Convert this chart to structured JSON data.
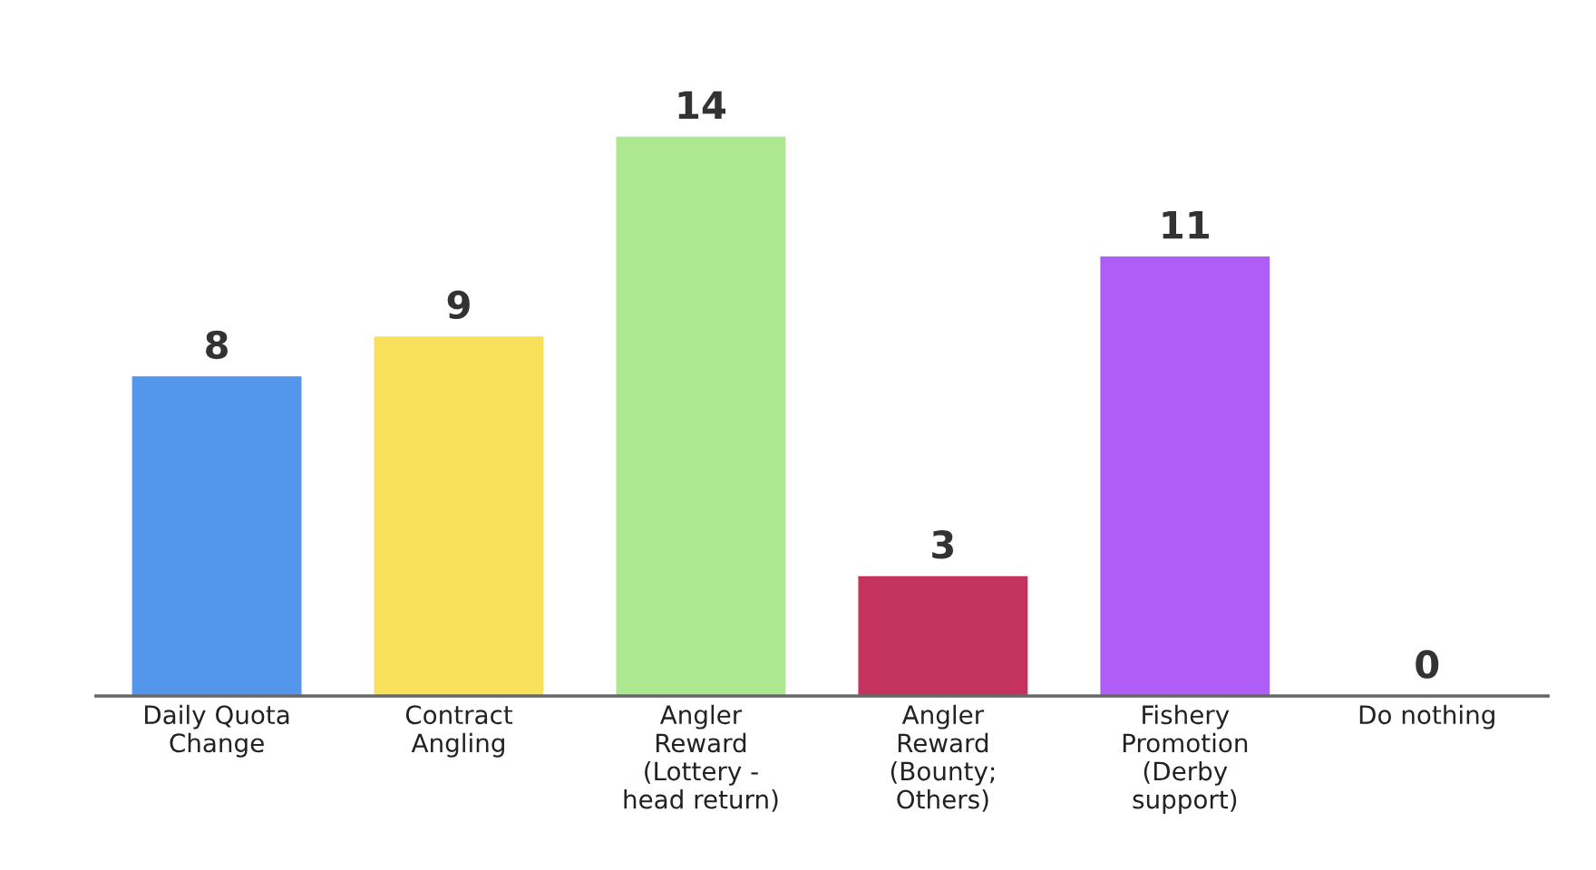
{
  "chart_data": {
    "type": "bar",
    "categories": [
      "Daily Quota\nChange",
      "Contract\nAngling",
      "Angler\nReward\n(Lottery -\nhead return)",
      "Angler\nReward\n(Bounty;\nOthers)",
      "Fishery\nPromotion\n(Derby\nsupport)",
      "Do nothing"
    ],
    "values": [
      8,
      9,
      14,
      3,
      11,
      0
    ],
    "colors": [
      "#5596ed",
      "#f9e05a",
      "#ade78f",
      "#c4325e",
      "#b05cf7",
      "#8a8a8a"
    ],
    "data_labels": true,
    "grid": false,
    "legend": false,
    "tick_labels": "x"
  }
}
